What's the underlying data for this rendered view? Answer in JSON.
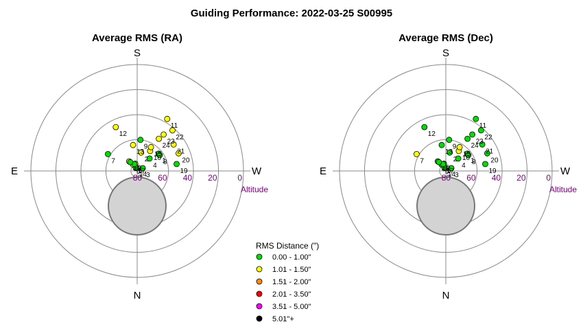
{
  "chart_data": {
    "type": "scatter",
    "title": "Guiding Performance: 2022-03-25 S00995",
    "altitude_label": "Altitude",
    "altitude_ticks": [
      80,
      60,
      40,
      20,
      0
    ],
    "compass": {
      "south": "S",
      "north": "N",
      "east": "E",
      "west": "W"
    },
    "legend": {
      "title": "RMS Distance (\")",
      "items": [
        {
          "label": "0.00 - 1.00\"",
          "color": "#00dd00"
        },
        {
          "label": "1.01 - 1.50\"",
          "color": "#ffff00"
        },
        {
          "label": "1.51 - 2.00\"",
          "color": "#ff8c00"
        },
        {
          "label": "2.01 - 3.50\"",
          "color": "#ff0000"
        },
        {
          "label": "3.51 - 5.00\"",
          "color": "#ff00ff"
        },
        {
          "label": "5.01\"+",
          "color": "#000000"
        }
      ]
    },
    "plots": [
      {
        "subtitle": "Average RMS (RA)",
        "points": [
          {
            "label": "1",
            "az": 129,
            "alt": 63,
            "cls": 0
          },
          {
            "label": "2",
            "az": 168,
            "alt": 70,
            "cls": 1
          },
          {
            "label": "3",
            "az": 117,
            "alt": 80,
            "cls": 0
          },
          {
            "label": "4",
            "az": 135,
            "alt": 71,
            "cls": 0
          },
          {
            "label": "5",
            "az": 195,
            "alt": 79,
            "cls": 1
          },
          {
            "label": "6",
            "az": 213,
            "alt": 79,
            "cls": 1
          },
          {
            "label": "7",
            "az": 240,
            "alt": 58,
            "cls": 0
          },
          {
            "label": "8",
            "az": 125,
            "alt": 63,
            "cls": 0
          },
          {
            "label": "9",
            "az": 174,
            "alt": 60,
            "cls": 0
          },
          {
            "label": "10",
            "az": 147,
            "alt": 66,
            "cls": 1
          },
          {
            "label": "11",
            "az": 150,
            "alt": 37,
            "cls": 1
          },
          {
            "label": "12",
            "az": 206,
            "alt": 46,
            "cls": 1
          },
          {
            "label": "13",
            "az": 189,
            "alt": 64,
            "cls": 1
          },
          {
            "label": "14",
            "az": 203,
            "alt": 82,
            "cls": 0
          },
          {
            "label": "15",
            "az": 150,
            "alt": 63,
            "cls": 1
          },
          {
            "label": "16",
            "az": 220,
            "alt": 75,
            "cls": 1
          },
          {
            "label": "17",
            "az": 202,
            "alt": 79,
            "cls": 0
          },
          {
            "label": "18",
            "az": 218,
            "alt": 76,
            "cls": 0
          },
          {
            "label": "19",
            "az": 100,
            "alt": 53,
            "cls": 0
          },
          {
            "label": "20",
            "az": 113,
            "alt": 49,
            "cls": 1
          },
          {
            "label": "21",
            "az": 126,
            "alt": 49,
            "cls": 1
          },
          {
            "label": "22",
            "az": 139,
            "alt": 42,
            "cls": 1
          },
          {
            "label": "23",
            "az": 144,
            "alt": 49,
            "cls": 1
          },
          {
            "label": "24",
            "az": 146,
            "alt": 54,
            "cls": 1
          }
        ]
      },
      {
        "subtitle": "Average RMS (Dec)",
        "points": [
          {
            "label": "1",
            "az": 129,
            "alt": 63,
            "cls": 0
          },
          {
            "label": "2",
            "az": 168,
            "alt": 70,
            "cls": 0
          },
          {
            "label": "3",
            "az": 117,
            "alt": 80,
            "cls": 0
          },
          {
            "label": "4",
            "az": 135,
            "alt": 71,
            "cls": 0
          },
          {
            "label": "5",
            "az": 195,
            "alt": 79,
            "cls": 0
          },
          {
            "label": "6",
            "az": 213,
            "alt": 79,
            "cls": 0
          },
          {
            "label": "7",
            "az": 240,
            "alt": 58,
            "cls": 1
          },
          {
            "label": "8",
            "az": 125,
            "alt": 63,
            "cls": 0
          },
          {
            "label": "9",
            "az": 174,
            "alt": 60,
            "cls": 0
          },
          {
            "label": "10",
            "az": 147,
            "alt": 66,
            "cls": 1
          },
          {
            "label": "11",
            "az": 150,
            "alt": 37,
            "cls": 0
          },
          {
            "label": "12",
            "az": 206,
            "alt": 46,
            "cls": 0
          },
          {
            "label": "13",
            "az": 189,
            "alt": 64,
            "cls": 0
          },
          {
            "label": "14",
            "az": 203,
            "alt": 82,
            "cls": 0
          },
          {
            "label": "15",
            "az": 150,
            "alt": 63,
            "cls": 1
          },
          {
            "label": "16",
            "az": 220,
            "alt": 75,
            "cls": 0
          },
          {
            "label": "17",
            "az": 202,
            "alt": 79,
            "cls": 0
          },
          {
            "label": "18",
            "az": 218,
            "alt": 76,
            "cls": 0
          },
          {
            "label": "19",
            "az": 100,
            "alt": 53,
            "cls": 0
          },
          {
            "label": "20",
            "az": 113,
            "alt": 49,
            "cls": 0
          },
          {
            "label": "21",
            "az": 126,
            "alt": 49,
            "cls": 0
          },
          {
            "label": "22",
            "az": 139,
            "alt": 42,
            "cls": 0
          },
          {
            "label": "23",
            "az": 144,
            "alt": 49,
            "cls": 0
          },
          {
            "label": "24",
            "az": 146,
            "alt": 54,
            "cls": 0
          }
        ]
      }
    ]
  }
}
